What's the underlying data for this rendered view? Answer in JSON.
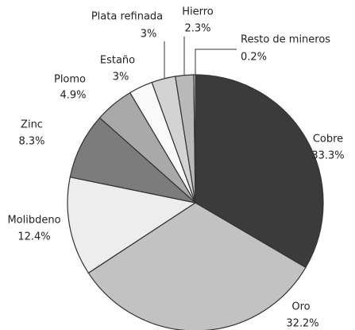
{
  "chart_data": {
    "type": "pie",
    "categories": [
      "Cobre",
      "Oro",
      "Molibdeno",
      "Zinc",
      "Plomo",
      "Estaño",
      "Plata refinada",
      "Hierro",
      "Resto de mineros"
    ],
    "values": [
      33.3,
      32.2,
      12.4,
      8.3,
      4.9,
      3,
      3,
      2.3,
      0.2
    ],
    "value_labels": [
      "33.3%",
      "32.2%",
      "12.4%",
      "8.3%",
      "4.9%",
      "3%",
      "3%",
      "2.3%",
      "0.2%"
    ],
    "colors": [
      "#3b3b3b",
      "#c2c2c2",
      "#ededed",
      "#7c7c7c",
      "#a9a9a9",
      "#f9f9f9",
      "#d3d3d3",
      "#b9b9b9",
      "#ffffff"
    ]
  }
}
